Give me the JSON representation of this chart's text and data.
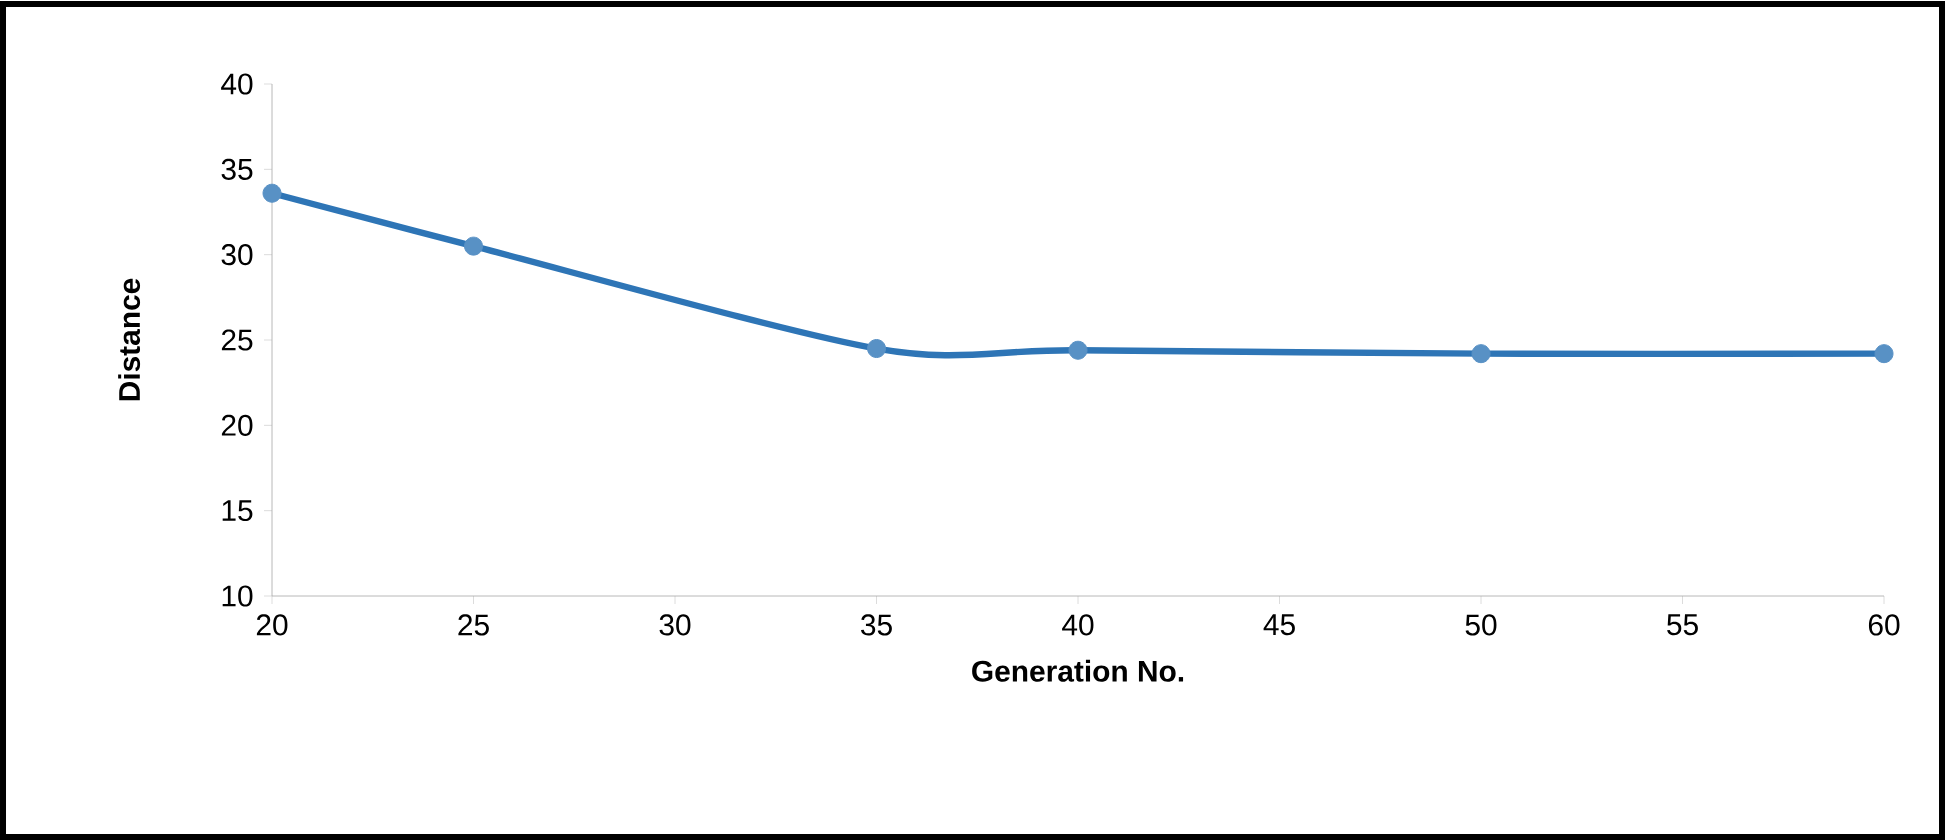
{
  "chart_data": {
    "type": "line",
    "xlabel": "Generation No.",
    "ylabel": "Distance",
    "x": [
      20,
      25,
      35,
      40,
      50,
      60
    ],
    "series": [
      {
        "color": "#2e75b6",
        "values": [
          33.6,
          30.5,
          24.5,
          24.4,
          24.2,
          24.2
        ]
      }
    ],
    "xlim": [
      20,
      60
    ],
    "xticks": [
      20,
      25,
      30,
      35,
      40,
      45,
      50,
      55,
      60
    ],
    "ylim": [
      10,
      40
    ],
    "yticks": [
      10,
      15,
      20,
      25,
      30,
      35,
      40
    ],
    "marker": "circle"
  }
}
